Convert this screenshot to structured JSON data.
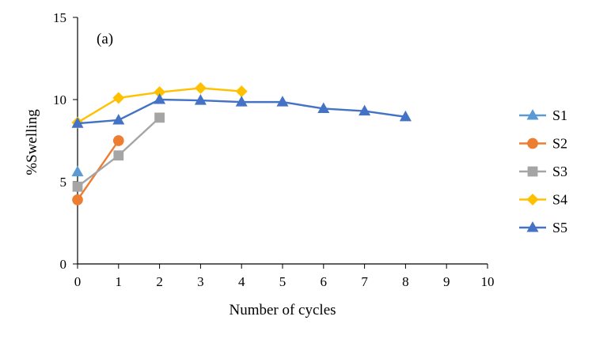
{
  "chart_data": {
    "type": "line",
    "title": "",
    "annotation": "(a)",
    "xlabel": "Number of cycles",
    "ylabel": "%Swelling",
    "xlim": [
      0,
      10
    ],
    "ylim": [
      0,
      15
    ],
    "xticks": [
      0,
      1,
      2,
      3,
      4,
      5,
      6,
      7,
      8,
      9,
      10
    ],
    "yticks": [
      0,
      5,
      10,
      15
    ],
    "grid": false,
    "legend_position": "right",
    "series": [
      {
        "name": "S1",
        "marker": "triangle",
        "color": "#5B9BD5",
        "x": [
          0
        ],
        "y": [
          5.6
        ]
      },
      {
        "name": "S2",
        "marker": "circle",
        "color": "#ED7D31",
        "x": [
          0,
          1
        ],
        "y": [
          3.9,
          7.5
        ]
      },
      {
        "name": "S3",
        "marker": "square",
        "color": "#A5A5A5",
        "x": [
          0,
          1,
          2
        ],
        "y": [
          4.7,
          6.6,
          8.9
        ]
      },
      {
        "name": "S4",
        "marker": "diamond",
        "color": "#FFC000",
        "x": [
          0,
          1,
          2,
          3,
          4
        ],
        "y": [
          8.6,
          10.1,
          10.45,
          10.7,
          10.5
        ]
      },
      {
        "name": "S5",
        "marker": "triangle",
        "color": "#4472C4",
        "x": [
          0,
          1,
          2,
          3,
          4,
          5,
          6,
          7,
          8
        ],
        "y": [
          8.55,
          8.75,
          10.0,
          9.95,
          9.85,
          9.85,
          9.45,
          9.3,
          8.95
        ]
      }
    ]
  }
}
